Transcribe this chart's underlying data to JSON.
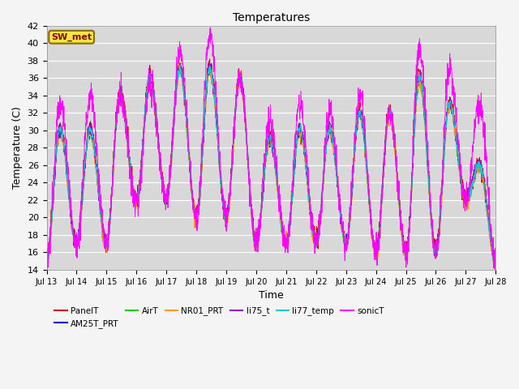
{
  "title": "Temperatures",
  "xlabel": "Time",
  "ylabel": "Temperature (C)",
  "ylim": [
    14,
    42
  ],
  "annotation": "SW_met",
  "series": [
    "PanelT",
    "AM25T_PRT",
    "AirT",
    "NR01_PRT",
    "li75_t",
    "li77_temp",
    "sonicT"
  ],
  "colors": [
    "#cc0000",
    "#0000cc",
    "#00cc00",
    "#ff9900",
    "#9900cc",
    "#00cccc",
    "#ff00ff"
  ],
  "xtick_labels": [
    "Jul 13",
    "Jul 14",
    "Jul 15",
    "Jul 16",
    "Jul 17",
    "Jul 18",
    "Jul 19",
    "Jul 20",
    "Jul 21",
    "Jul 22",
    "Jul 23",
    "Jul 24",
    "Jul 25",
    "Jul 26",
    "Jul 27",
    "Jul 28"
  ],
  "axes_facecolor": "#d8d8d8",
  "fig_facecolor": "#f4f4f4",
  "grid_color": "#ffffff",
  "ytick_start": 14,
  "ytick_end": 42,
  "ytick_step": 2
}
